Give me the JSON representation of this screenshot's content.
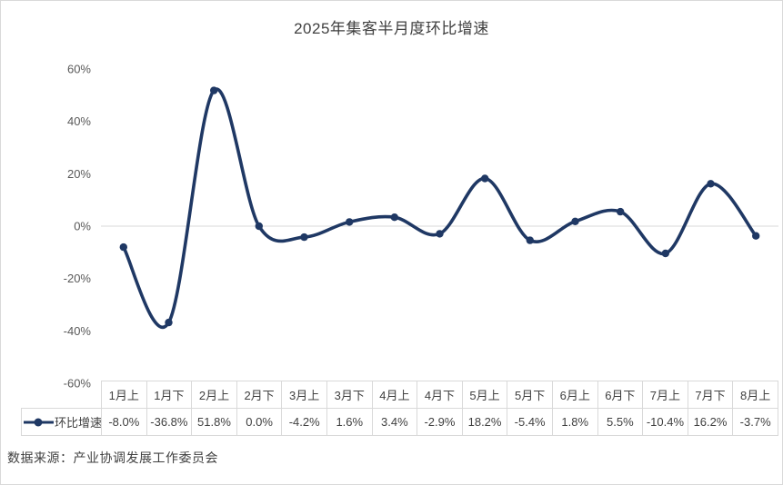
{
  "chart_data": {
    "type": "line",
    "title": "2025年集客半月度环比增速",
    "categories": [
      "1月上",
      "1月下",
      "2月上",
      "2月下",
      "3月上",
      "3月下",
      "4月上",
      "4月下",
      "5月上",
      "5月下",
      "6月上",
      "6月下",
      "7月上",
      "7月下",
      "8月上"
    ],
    "series": [
      {
        "name": "环比增速",
        "values": [
          -8.0,
          -36.8,
          51.8,
          0.0,
          -4.2,
          1.6,
          3.4,
          -2.9,
          18.2,
          -5.4,
          1.8,
          5.5,
          -10.4,
          16.2,
          -3.7
        ],
        "labels": [
          "-8.0%",
          "-36.8%",
          "51.8%",
          "0.0%",
          "-4.2%",
          "1.6%",
          "3.4%",
          "-2.9%",
          "18.2%",
          "-5.4%",
          "1.8%",
          "5.5%",
          "-10.4%",
          "16.2%",
          "-3.7%"
        ]
      }
    ],
    "xlabel": "",
    "ylabel": "",
    "ylim": [
      -60,
      60
    ],
    "ytick_step": 20,
    "yticks": [
      "60%",
      "40%",
      "20%",
      "0%",
      "-20%",
      "-40%",
      "-60%"
    ],
    "ytick_values": [
      60,
      40,
      20,
      0,
      -20,
      -40,
      -60
    ],
    "grid": "zero-line-only",
    "legend_position": "data-table-left",
    "smooth": true,
    "markers": true
  },
  "colors": {
    "line": "#1f3864",
    "marker": "#1f3864",
    "gridline": "#d9d9d9",
    "axis_text": "#595959",
    "table_border": "#d9d9d9",
    "table_text": "#404040",
    "title_text": "#404040",
    "frame_border": "#d9d9d9",
    "background": "#ffffff"
  },
  "source": {
    "text": "数据来源：产业协调发展工作委员会"
  },
  "icons": {
    "legend_marker": "line-with-dot-marker-icon"
  }
}
